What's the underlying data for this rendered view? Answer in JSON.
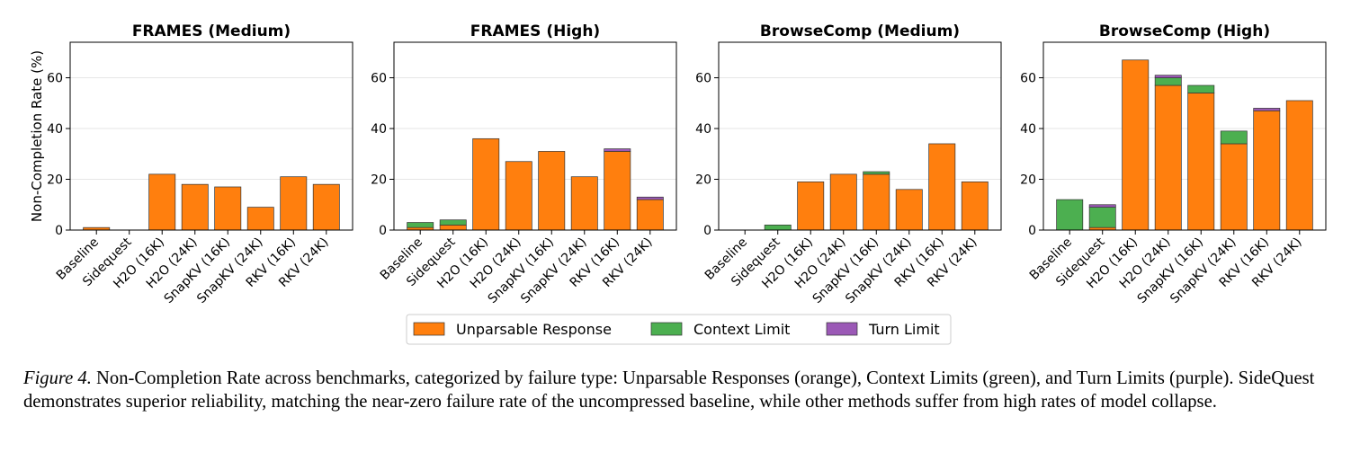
{
  "chart_data": [
    {
      "type": "bar",
      "stacked": true,
      "title": "FRAMES (Medium)",
      "ylabel": "Non-Completion Rate (%)",
      "ylim": [
        0,
        74
      ],
      "yticks": [
        0,
        20,
        40,
        60
      ],
      "grid": true,
      "categories": [
        "Baseline",
        "Sidequest",
        "H2O (16K)",
        "H2O (24K)",
        "SnapKV (16K)",
        "SnapKV (24K)",
        "RKV (16K)",
        "RKV (24K)"
      ],
      "series": [
        {
          "name": "Unparsable Response",
          "color": "#ff7f0e",
          "values": [
            1,
            0,
            22,
            18,
            17,
            9,
            21,
            18
          ]
        },
        {
          "name": "Context Limit",
          "color": "#4caf50",
          "values": [
            0,
            0,
            0,
            0,
            0,
            0,
            0,
            0
          ]
        },
        {
          "name": "Turn Limit",
          "color": "#9b59b6",
          "values": [
            0,
            0,
            0,
            0,
            0,
            0,
            0,
            0
          ]
        }
      ]
    },
    {
      "type": "bar",
      "stacked": true,
      "title": "FRAMES (High)",
      "ylabel": "",
      "ylim": [
        0,
        74
      ],
      "yticks": [
        0,
        20,
        40,
        60
      ],
      "grid": true,
      "categories": [
        "Baseline",
        "Sidequest",
        "H2O (16K)",
        "H2O (24K)",
        "SnapKV (16K)",
        "SnapKV (24K)",
        "RKV (16K)",
        "RKV (24K)"
      ],
      "series": [
        {
          "name": "Unparsable Response",
          "color": "#ff7f0e",
          "values": [
            1,
            2,
            36,
            27,
            31,
            21,
            31,
            12
          ]
        },
        {
          "name": "Context Limit",
          "color": "#4caf50",
          "values": [
            2,
            2,
            0,
            0,
            0,
            0,
            0,
            0
          ]
        },
        {
          "name": "Turn Limit",
          "color": "#9b59b6",
          "values": [
            0,
            0,
            0,
            0,
            0,
            0,
            1,
            1
          ]
        }
      ]
    },
    {
      "type": "bar",
      "stacked": true,
      "title": "BrowseComp (Medium)",
      "ylabel": "",
      "ylim": [
        0,
        74
      ],
      "yticks": [
        0,
        20,
        40,
        60
      ],
      "grid": true,
      "categories": [
        "Baseline",
        "Sidequest",
        "H2O (16K)",
        "H2O (24K)",
        "SnapKV (16K)",
        "SnapKV (24K)",
        "RKV (16K)",
        "RKV (24K)"
      ],
      "series": [
        {
          "name": "Unparsable Response",
          "color": "#ff7f0e",
          "values": [
            0,
            0,
            19,
            22,
            22,
            16,
            34,
            19
          ]
        },
        {
          "name": "Context Limit",
          "color": "#4caf50",
          "values": [
            0,
            2,
            0,
            0,
            1,
            0,
            0,
            0
          ]
        },
        {
          "name": "Turn Limit",
          "color": "#9b59b6",
          "values": [
            0,
            0,
            0,
            0,
            0,
            0,
            0,
            0
          ]
        }
      ]
    },
    {
      "type": "bar",
      "stacked": true,
      "title": "BrowseComp (High)",
      "ylabel": "",
      "ylim": [
        0,
        74
      ],
      "yticks": [
        0,
        20,
        40,
        60
      ],
      "grid": true,
      "categories": [
        "Baseline",
        "Sidequest",
        "H2O (16K)",
        "H2O (24K)",
        "SnapKV (16K)",
        "SnapKV (24K)",
        "RKV (16K)",
        "RKV (24K)"
      ],
      "series": [
        {
          "name": "Unparsable Response",
          "color": "#ff7f0e",
          "values": [
            0,
            1,
            67,
            57,
            54,
            34,
            47,
            51
          ]
        },
        {
          "name": "Context Limit",
          "color": "#4caf50",
          "values": [
            12,
            8,
            0,
            3,
            3,
            5,
            0,
            0
          ]
        },
        {
          "name": "Turn Limit",
          "color": "#9b59b6",
          "values": [
            0,
            1,
            0,
            1,
            0,
            0,
            1,
            0
          ]
        }
      ]
    }
  ],
  "legend": {
    "placement": "bottom-center",
    "items": [
      {
        "label": "Unparsable Response",
        "color": "#ff7f0e"
      },
      {
        "label": "Context Limit",
        "color": "#4caf50"
      },
      {
        "label": "Turn Limit",
        "color": "#9b59b6"
      }
    ]
  },
  "caption": {
    "label": "Figure 4.",
    "text": "Non-Completion Rate across benchmarks, categorized by failure type: Unparsable Responses (orange), Context Limits (green), and Turn Limits (purple). SideQuest demonstrates superior reliability, matching the near-zero failure rate of the uncompressed baseline, while other methods suffer from high rates of model collapse."
  }
}
